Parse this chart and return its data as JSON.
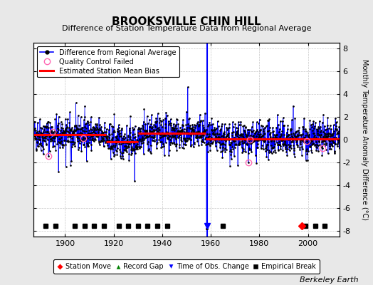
{
  "title": "BROOKSVILLE CHIN HILL",
  "subtitle": "Difference of Station Temperature Data from Regional Average",
  "ylabel_right": "Monthly Temperature Anomaly Difference (°C)",
  "credit": "Berkeley Earth",
  "xlim": [
    1887,
    2013
  ],
  "ylim": [
    -8.5,
    8.5
  ],
  "yticks": [
    -8,
    -6,
    -4,
    -2,
    0,
    2,
    4,
    6,
    8
  ],
  "xticks": [
    1900,
    1920,
    1940,
    1960,
    1980,
    2000
  ],
  "bg_color": "#e8e8e8",
  "plot_bg_color": "#ffffff",
  "grid_color": "#c8c8c8",
  "seed": 42,
  "station_moves": [
    1997.5
  ],
  "empirical_breaks": [
    1892,
    1896,
    1904,
    1908,
    1912,
    1916,
    1922,
    1926,
    1930,
    1934,
    1938,
    1942,
    1965,
    1999,
    2003,
    2007
  ],
  "time_of_obs_change": [
    1958.5
  ],
  "segment_biases": [
    {
      "start": 1887,
      "end": 1917,
      "bias": 0.45
    },
    {
      "start": 1917,
      "end": 1930,
      "bias": -0.18
    },
    {
      "start": 1930,
      "end": 1958,
      "bias": 0.55
    },
    {
      "start": 1958,
      "end": 1998,
      "bias": 0.05
    },
    {
      "start": 1998,
      "end": 2013,
      "bias": 0.05
    }
  ],
  "qc_failed_x": [
    1893.2,
    1895.0,
    1907.5,
    1975.5,
    1976.2,
    1999.5,
    2006.0
  ],
  "noise_std": 0.72,
  "n_outliers": 25,
  "marker_y": -7.55,
  "title_fontsize": 11,
  "subtitle_fontsize": 8,
  "tick_fontsize": 8,
  "legend_fontsize": 7,
  "credit_fontsize": 8
}
